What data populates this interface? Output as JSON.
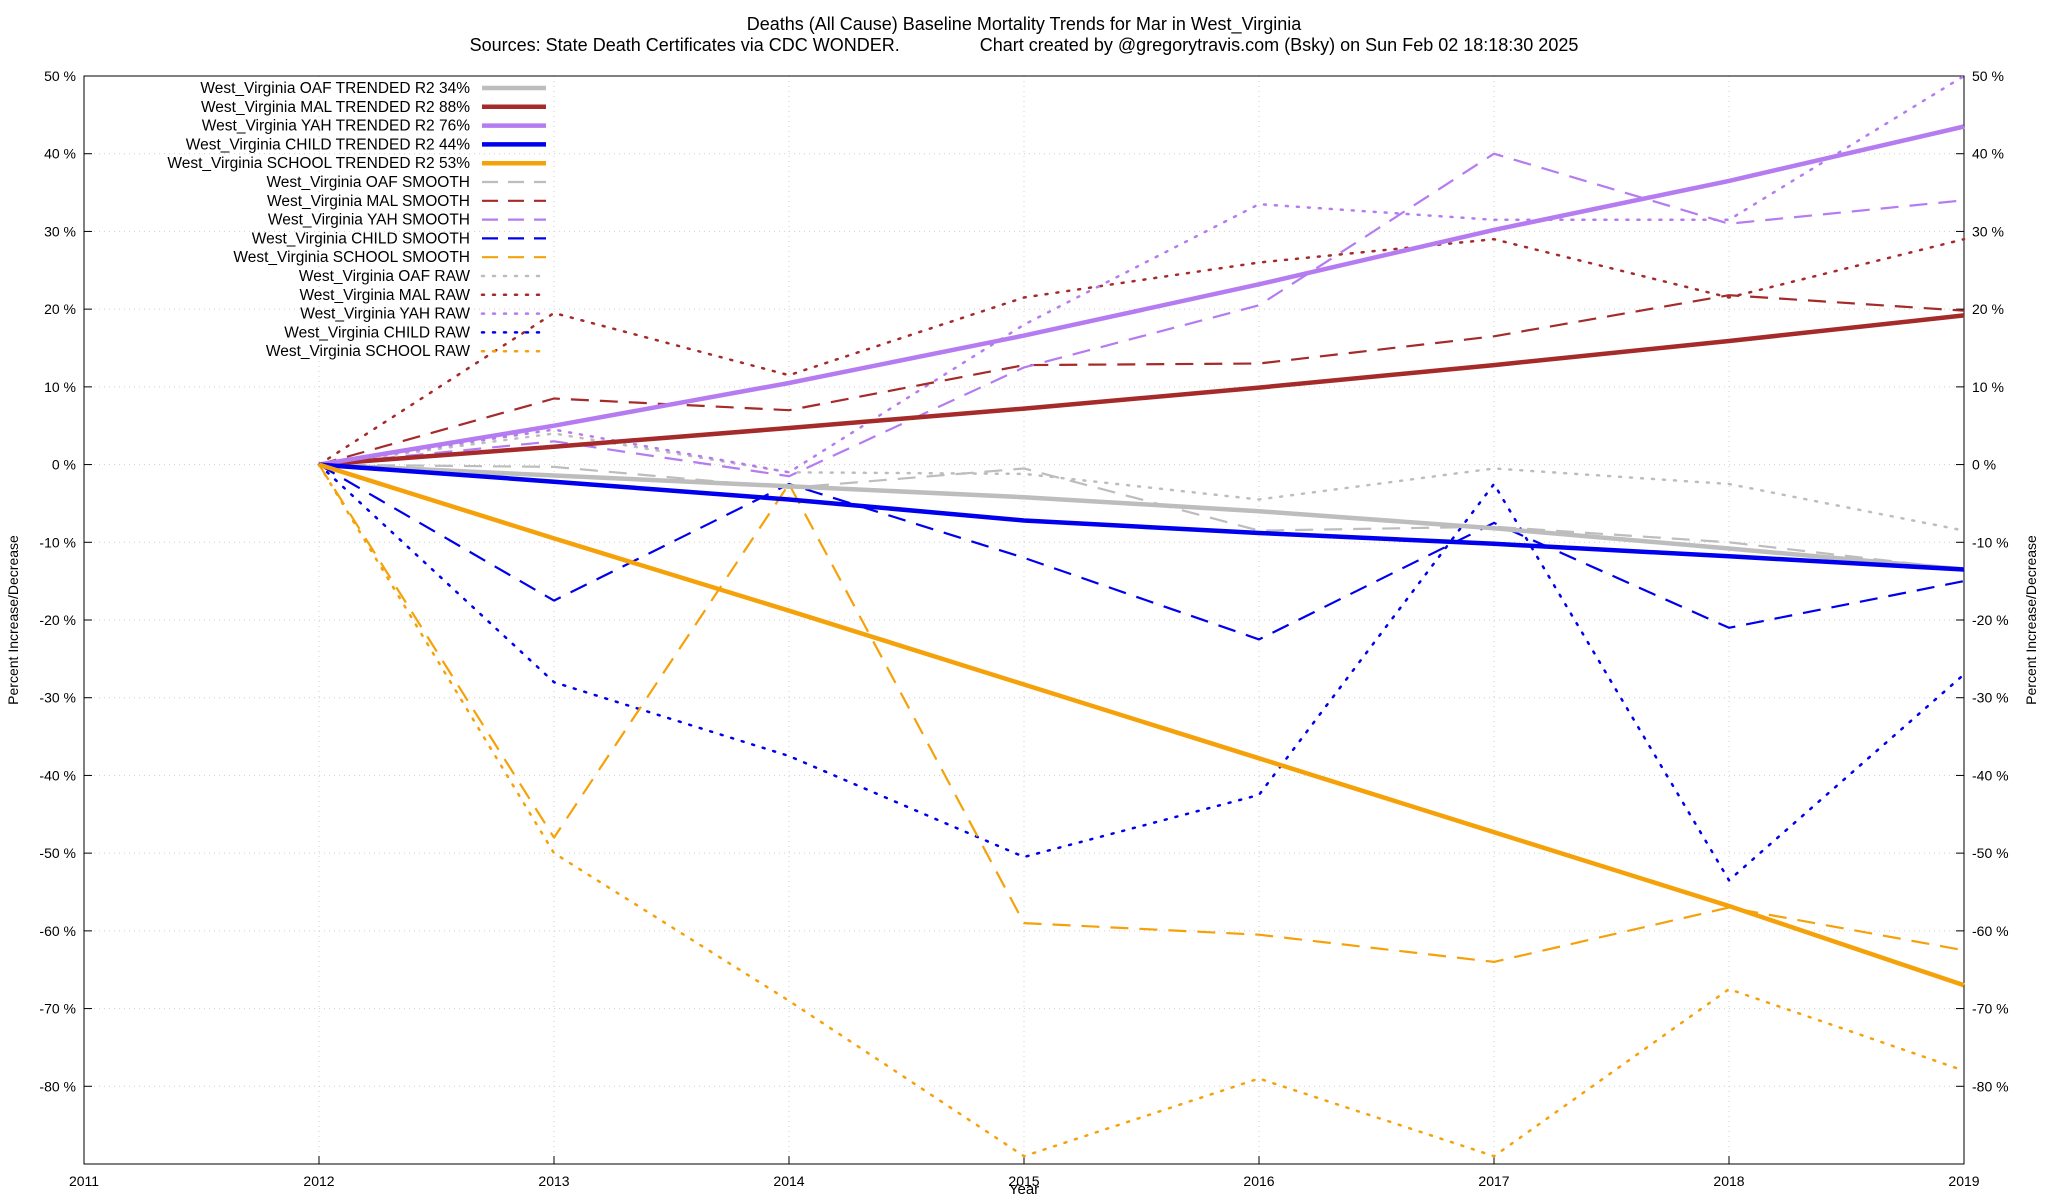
{
  "chart_data": {
    "type": "line",
    "title": "Deaths (All Cause)  Baseline Mortality Trends for Mar in West_Virginia",
    "subtitle": "Sources: State Death Certificates via CDC WONDER.                Chart created by @gregorytravis.com (Bsky) on Sun Feb 02 18:18:30 2025",
    "xlabel": "Year",
    "ylabel": "Percent Increase/Decrease",
    "y2label": "Percent Increase/Decrease",
    "xlim": [
      2011,
      2019
    ],
    "ylim": [
      -90,
      50
    ],
    "x_ticks": [
      "2011",
      "2012",
      "2013",
      "2014",
      "2015",
      "2016",
      "2017",
      "2018",
      "2019"
    ],
    "x_tick_values": [
      2011,
      2012,
      2013,
      2014,
      2015,
      2016,
      2017,
      2018,
      2019
    ],
    "y_ticks": [
      "50 %",
      "40 %",
      "30 %",
      "20 %",
      "10 %",
      "0 %",
      "-10 %",
      "-20 %",
      "-30 %",
      "-40 %",
      "-50 %",
      "-60 %",
      "-70 %",
      "-80 %"
    ],
    "y_tick_values": [
      50,
      40,
      30,
      20,
      10,
      0,
      -10,
      -20,
      -30,
      -40,
      -50,
      -60,
      -70,
      -80
    ],
    "y2_ticks": [
      "50 %",
      "40 %",
      "30 %",
      "20 %",
      "10 %",
      "0 %",
      "-10 %",
      "-20 %",
      "-30 %",
      "-40 %",
      "-50 %",
      "-60 %",
      "-70 %",
      "-80 %"
    ],
    "grid": true,
    "legend_position": "top-left",
    "x": [
      2012,
      2013,
      2014,
      2015,
      2016,
      2017,
      2018,
      2019
    ],
    "series": [
      {
        "name": "West_Virginia OAF TRENDED R2  34%",
        "style": "solid",
        "color": "#bdbdbd",
        "values": [
          0,
          -1.4,
          -2.8,
          -4.2,
          -6.0,
          -8.2,
          -10.8,
          -13.5
        ]
      },
      {
        "name": "West_Virginia MAL TRENDED R2  88%",
        "style": "solid",
        "color": "#a52a2a",
        "values": [
          0,
          2.3,
          4.7,
          7.2,
          9.9,
          12.8,
          15.9,
          19.2
        ]
      },
      {
        "name": "West_Virginia YAH TRENDED R2  76%",
        "style": "solid",
        "color": "#b57bf0",
        "values": [
          0,
          5.0,
          10.5,
          16.6,
          23.2,
          30.2,
          36.5,
          43.5
        ]
      },
      {
        "name": "West_Virginia CHILD TRENDED R2  44%",
        "style": "solid",
        "color": "#0000ee",
        "values": [
          0,
          -2.2,
          -4.5,
          -7.2,
          -8.8,
          -10.2,
          -11.8,
          -13.5
        ]
      },
      {
        "name": "West_Virginia SCHOOL TRENDED R2  53%",
        "style": "solid",
        "color": "#f5a20a",
        "values": [
          0,
          -9.5,
          -18.8,
          -28.3,
          -37.8,
          -47.3,
          -56.8,
          -67.0
        ]
      },
      {
        "name": "West_Virginia OAF SMOOTH",
        "style": "dash",
        "color": "#bdbdbd",
        "values": [
          0,
          -0.3,
          -3.0,
          -0.5,
          -8.5,
          -8.0,
          -10.0,
          -13.5
        ]
      },
      {
        "name": "West_Virginia MAL SMOOTH",
        "style": "dash",
        "color": "#a52a2a",
        "values": [
          0,
          8.5,
          7.0,
          12.8,
          13.0,
          16.5,
          21.8,
          19.8
        ]
      },
      {
        "name": "West_Virginia YAH SMOOTH",
        "style": "dash",
        "color": "#b57bf0",
        "values": [
          0,
          3.0,
          -1.5,
          12.5,
          20.5,
          40.0,
          31.0,
          34.0
        ]
      },
      {
        "name": "West_Virginia CHILD SMOOTH",
        "style": "dash",
        "color": "#0000ee",
        "values": [
          0,
          -17.5,
          -2.5,
          -12.0,
          -22.5,
          -7.5,
          -21.0,
          -15.0
        ]
      },
      {
        "name": "West_Virginia SCHOOL SMOOTH",
        "style": "dash",
        "color": "#f5a20a",
        "values": [
          0,
          -48.0,
          -2.5,
          -59.0,
          -60.5,
          -64.0,
          -57.0,
          -62.5
        ]
      },
      {
        "name": "West_Virginia OAF RAW",
        "style": "dot",
        "color": "#bdbdbd",
        "values": [
          0,
          4.0,
          -1.0,
          -1.2,
          -4.5,
          -0.5,
          -2.5,
          -8.5
        ]
      },
      {
        "name": "West_Virginia MAL RAW",
        "style": "dot",
        "color": "#a52a2a",
        "values": [
          0,
          19.5,
          11.5,
          21.5,
          26.0,
          29.0,
          21.5,
          29.0
        ]
      },
      {
        "name": "West_Virginia YAH RAW",
        "style": "dot",
        "color": "#b57bf0",
        "values": [
          0,
          4.5,
          -1.0,
          18.0,
          33.5,
          31.5,
          31.5,
          50.5
        ]
      },
      {
        "name": "West_Virginia CHILD RAW",
        "style": "dot",
        "color": "#0000ee",
        "values": [
          0,
          -28.0,
          -37.5,
          -50.5,
          -42.5,
          -2.5,
          -53.5,
          -27.0
        ]
      },
      {
        "name": "West_Virginia SCHOOL RAW",
        "style": "dot",
        "color": "#f5a20a",
        "values": [
          0,
          -50.0,
          -69.0,
          -89.0,
          -79.0,
          -89.0,
          -67.5,
          -78.0
        ]
      }
    ]
  }
}
